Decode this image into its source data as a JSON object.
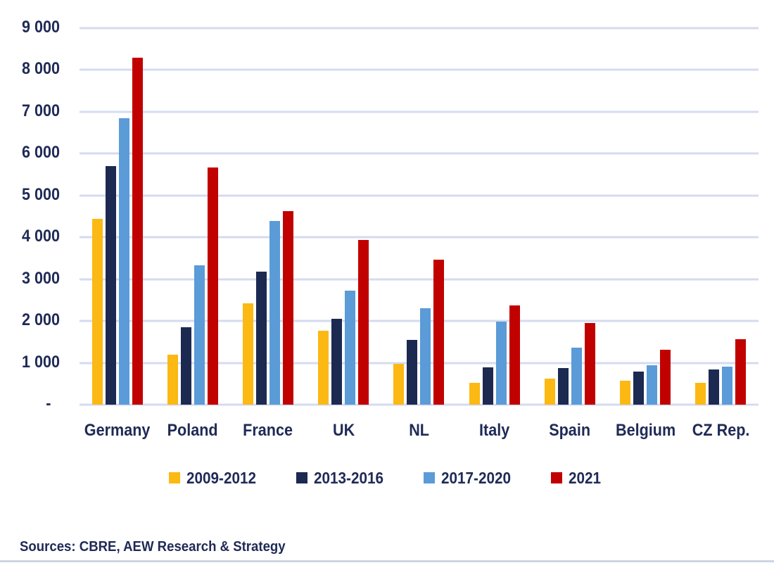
{
  "chart_data": {
    "type": "bar",
    "title": "",
    "categories": [
      "Germany",
      "Poland",
      "France",
      "UK",
      "NL",
      "Italy",
      "Spain",
      "Belgium",
      "CZ Rep."
    ],
    "series": [
      {
        "name": "2009-2012",
        "color": "#fcb813",
        "values": [
          4450,
          1200,
          2420,
          1760,
          970,
          520,
          630,
          570,
          530
        ]
      },
      {
        "name": "2013-2016",
        "color": "#1c2951",
        "values": [
          5700,
          1850,
          3180,
          2060,
          1550,
          890,
          870,
          790,
          840
        ]
      },
      {
        "name": "2017-2020",
        "color": "#5a9bd8",
        "values": [
          6850,
          3330,
          4390,
          2720,
          2300,
          1980,
          1370,
          940,
          910
        ]
      },
      {
        "name": "2021",
        "color": "#c10000",
        "values": [
          8300,
          5670,
          4630,
          3930,
          3460,
          2380,
          1960,
          1320,
          1560
        ]
      }
    ],
    "ylim": [
      0,
      9000
    ],
    "yticks": [
      {
        "value": 9000,
        "label": "9 000"
      },
      {
        "value": 8000,
        "label": "8 000"
      },
      {
        "value": 7000,
        "label": "7 000"
      },
      {
        "value": 6000,
        "label": "6 000"
      },
      {
        "value": 5000,
        "label": "5 000"
      },
      {
        "value": 4000,
        "label": "4 000"
      },
      {
        "value": 3000,
        "label": "3 000"
      },
      {
        "value": 2000,
        "label": "2 000"
      },
      {
        "value": 1000,
        "label": "1 000"
      },
      {
        "value": 0,
        "label": "-"
      }
    ],
    "grid": "horizontal",
    "legend_position": "bottom",
    "xlabel": "",
    "ylabel": ""
  },
  "footer": {
    "source_text": "Sources: CBRE, AEW Research & Strategy"
  },
  "colors": {
    "text": "#1f2a56",
    "gridline": "#d5dbf0",
    "bottom_border": "#ccd5e2",
    "background": "#ffffff"
  }
}
